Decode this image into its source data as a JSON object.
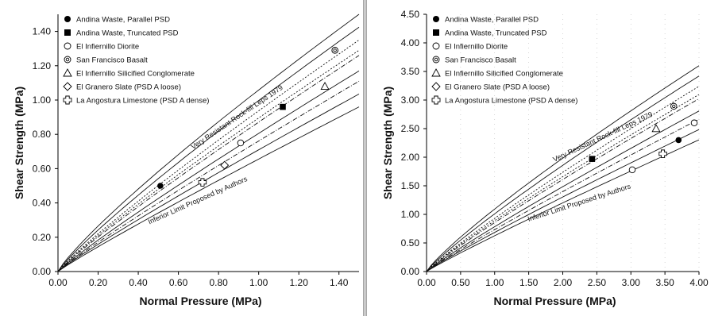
{
  "chart_data": [
    {
      "type": "line",
      "xlabel": "Normal Pressure (MPa)",
      "ylabel": "Shear Strength (MPa)",
      "xlim": [
        0,
        1.5
      ],
      "ylim": [
        0,
        1.5
      ],
      "xticks": [
        "0.00",
        "0.20",
        "0.40",
        "0.60",
        "0.80",
        "1.00",
        "1.20",
        "1.40"
      ],
      "yticks": [
        "0.00",
        "0.20",
        "0.40",
        "0.60",
        "0.80",
        "1.00",
        "1.20",
        "1.40"
      ],
      "legend_placement": "top-left",
      "upper_label": "Very Resistant Rock-fill Leps 1979",
      "lower_label": "Inferior Limit Proposed by Authors",
      "series": [
        {
          "name": "Andina Waste, Parallel PSD",
          "marker": "filled-circle",
          "points": [
            [
              0.51,
              0.5
            ]
          ]
        },
        {
          "name": "Andina Waste, Truncated PSD",
          "marker": "filled-square",
          "points": [
            [
              1.12,
              0.96
            ]
          ]
        },
        {
          "name": "El Infiernillo Diorite",
          "marker": "open-circle",
          "points": [
            [
              0.91,
              0.75
            ],
            [
              1.38,
              1.29
            ]
          ]
        },
        {
          "name": "San Francisco Basalt",
          "marker": "double-circle",
          "points": [
            [
              1.38,
              1.29
            ]
          ]
        },
        {
          "name": "El Infiernillo Silicified Conglomerate",
          "marker": "open-triangle",
          "points": [
            [
              1.33,
              1.08
            ]
          ]
        },
        {
          "name": "El Granero Slate (PSD A loose)",
          "marker": "open-diamond",
          "points": [
            [
              0.83,
              0.62
            ]
          ]
        },
        {
          "name": "La Angostura Limestone (PSD A dense)",
          "marker": "cross",
          "points": [
            [
              0.72,
              0.52
            ]
          ]
        }
      ]
    },
    {
      "type": "line",
      "xlabel": "Normal Pressure (MPa)",
      "ylabel": "Shear Strength (MPa)",
      "xlim": [
        0,
        4.0
      ],
      "ylim": [
        0,
        4.5
      ],
      "xticks": [
        "0.00",
        "0.50",
        "1.00",
        "1.50",
        "2.00",
        "2.50",
        "3.00",
        "3.50",
        "4.00"
      ],
      "yticks": [
        "0.00",
        "0.50",
        "1.00",
        "1.50",
        "2.00",
        "2.50",
        "3.00",
        "3.50",
        "4.00",
        "4.50"
      ],
      "legend_placement": "top-left",
      "upper_label": "Very Resistant Rock-fill Leps 1979",
      "lower_label": "Inferior Limit Proposed by Authors",
      "series": [
        {
          "name": "Andina Waste, Parallel PSD",
          "marker": "filled-circle",
          "points": [
            [
              3.7,
              2.3
            ]
          ]
        },
        {
          "name": "Andina Waste, Truncated PSD",
          "marker": "filled-square",
          "points": [
            [
              2.43,
              1.97
            ]
          ]
        },
        {
          "name": "El Infiernillo Diorite",
          "marker": "open-circle",
          "points": [
            [
              3.02,
              1.78
            ],
            [
              3.93,
              2.6
            ]
          ]
        },
        {
          "name": "San Francisco Basalt",
          "marker": "double-circle",
          "points": [
            [
              3.63,
              2.89
            ]
          ]
        },
        {
          "name": "El Infiernillo Silicified Conglomerate",
          "marker": "open-triangle",
          "points": [
            [
              3.37,
              2.5
            ]
          ]
        },
        {
          "name": "El Granero Slate (PSD A loose)",
          "marker": "open-diamond",
          "points": []
        },
        {
          "name": "La Angostura Limestone (PSD A dense)",
          "marker": "cross",
          "points": [
            [
              3.47,
              2.06
            ]
          ]
        }
      ]
    }
  ]
}
